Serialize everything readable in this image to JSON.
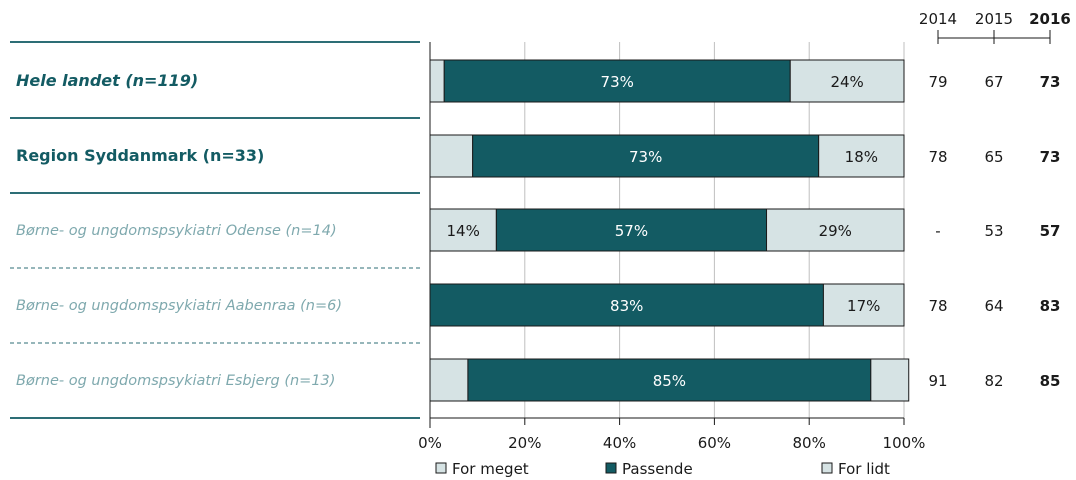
{
  "chart_data": {
    "type": "bar",
    "stacked": true,
    "orientation": "horizontal",
    "categories": [
      "Hele landet (n=119)",
      "Region Syddanmark (n=33)",
      "Børne- og ungdomspsykiatri Odense (n=14)",
      "Børne- og ungdomspsykiatri Aabenraa (n=6)",
      "Børne- og ungdomspsykiatri Esbjerg (n=13)"
    ],
    "category_styles": [
      "bold-italic",
      "bold",
      "italic-muted",
      "italic-muted",
      "italic-muted"
    ],
    "series": [
      {
        "name": "For meget",
        "color": "#d6e3e4",
        "values": [
          3,
          9,
          14,
          0,
          8
        ],
        "labels": [
          "",
          "",
          "14%",
          "",
          ""
        ]
      },
      {
        "name": "Passende",
        "color": "#135b63",
        "values": [
          73,
          73,
          57,
          83,
          85
        ],
        "labels": [
          "73%",
          "73%",
          "57%",
          "83%",
          "85%"
        ]
      },
      {
        "name": "For lidt",
        "color": "#d6e3e4",
        "values": [
          24,
          18,
          29,
          17,
          8
        ],
        "labels": [
          "24%",
          "18%",
          "29%",
          "17%",
          ""
        ]
      }
    ],
    "xlim": [
      0,
      100
    ],
    "xticks": [
      "0%",
      "20%",
      "40%",
      "60%",
      "80%",
      "100%"
    ],
    "year_columns": {
      "headers": [
        "2014",
        "2015",
        "2016"
      ],
      "rows": [
        [
          "79",
          "67",
          "73"
        ],
        [
          "78",
          "65",
          "73"
        ],
        [
          "-",
          "53",
          "57"
        ],
        [
          "78",
          "64",
          "83"
        ],
        [
          "91",
          "82",
          "85"
        ]
      ]
    },
    "legend_position": "bottom",
    "colors": {
      "teal": "#135b63",
      "light": "#d6e3e4",
      "muted_text": "#7fa9ae",
      "divider": "#2d6e76",
      "grid": "#bfbfbf"
    }
  }
}
